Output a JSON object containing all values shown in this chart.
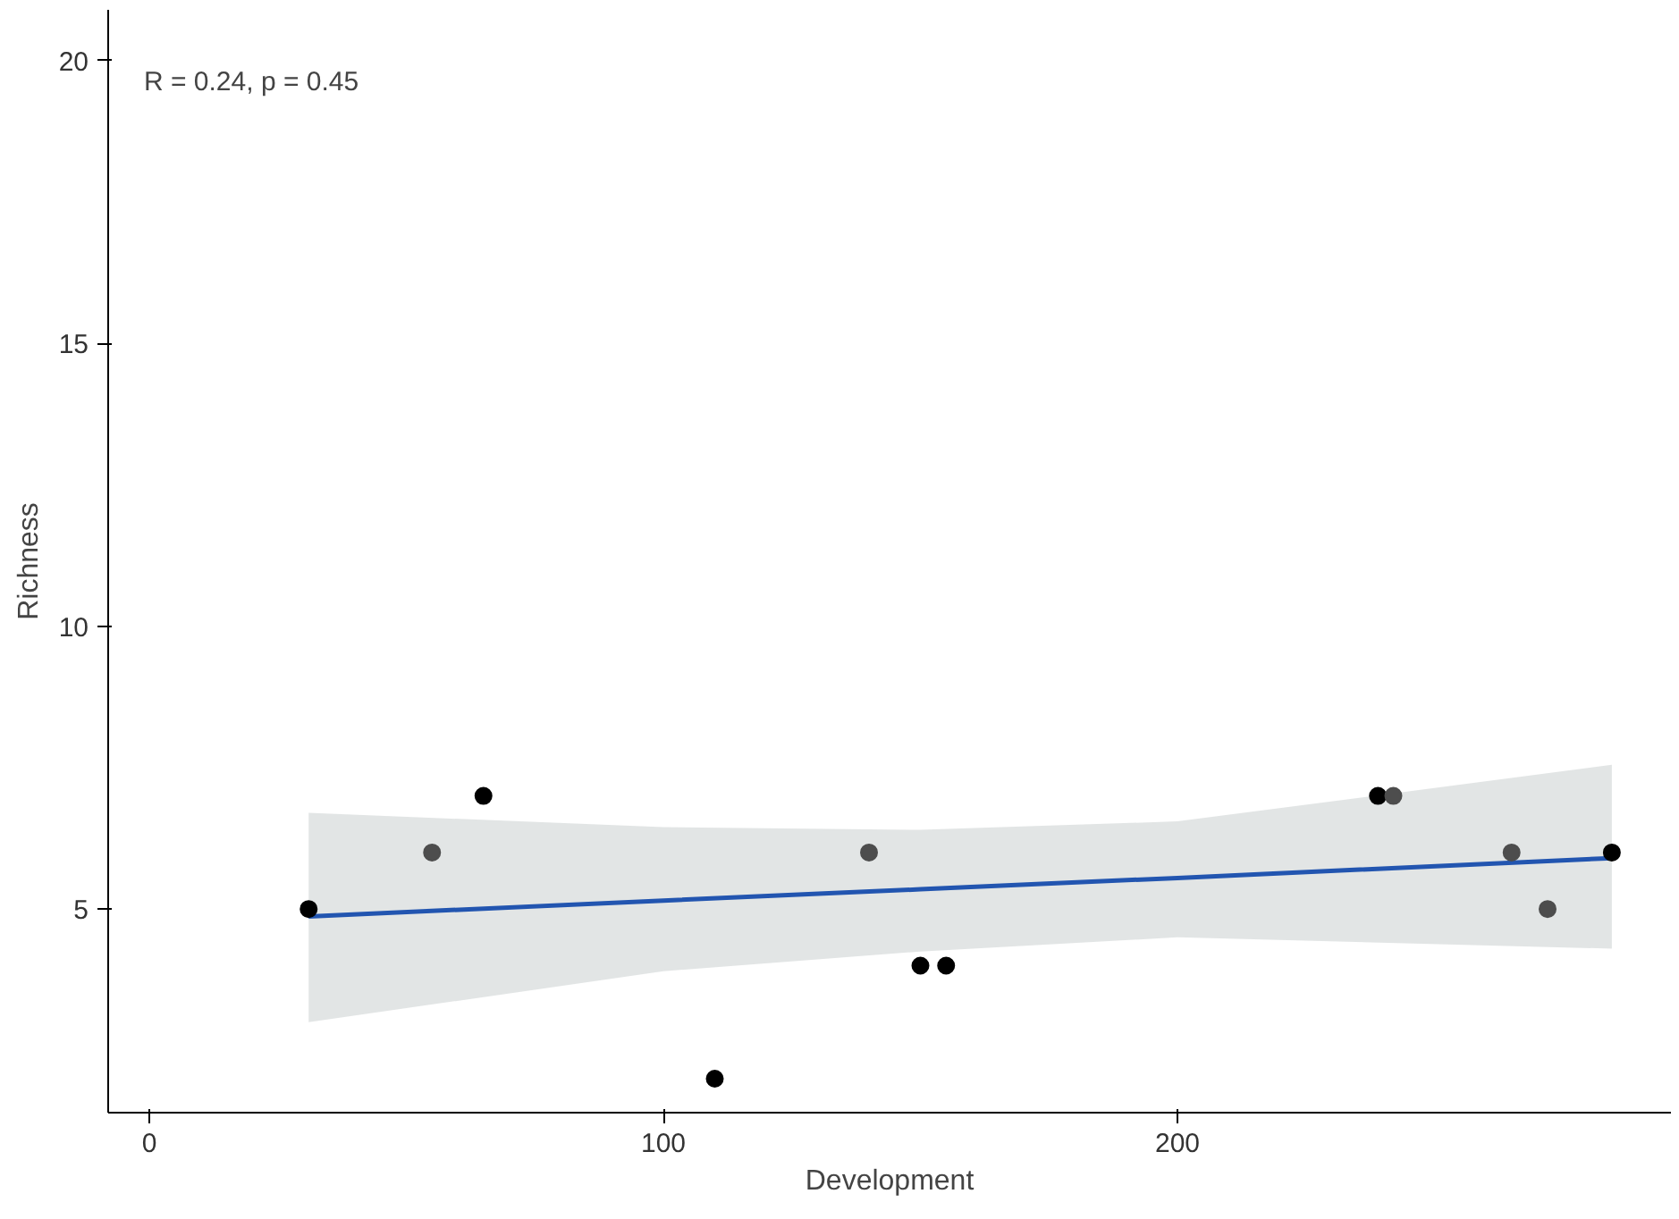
{
  "chart_data": {
    "type": "scatter",
    "xlabel": "Development",
    "ylabel": "Richness",
    "annotations": [
      "R = 0.24, p = 0.45"
    ],
    "xlim": [
      -8,
      296
    ],
    "xticks": [
      0,
      100,
      200
    ],
    "ylim": [
      1.4,
      20.9
    ],
    "yticks": [
      5,
      10,
      15,
      20
    ],
    "grid": false,
    "series": [
      {
        "marker": "circle",
        "x": [
          31,
          55,
          65,
          110,
          140,
          150,
          155,
          239,
          242,
          265,
          272,
          284.5
        ],
        "values": [
          5,
          6,
          7,
          2,
          6,
          4,
          4,
          7,
          7,
          6,
          5,
          6
        ],
        "colors": [
          "#000000",
          "#4d4d4d",
          "#000000",
          "#000000",
          "#4d4d4d",
          "#000000",
          "#000000",
          "#000000",
          "#4d4d4d",
          "#4d4d4d",
          "#4d4d4d",
          "#000000"
        ]
      },
      {
        "type": "line",
        "color": "#2255b0",
        "x": [
          31,
          100,
          150,
          200,
          284.5
        ],
        "values": [
          4.87,
          5.15,
          5.35,
          5.55,
          5.9
        ],
        "lower": [
          3.0,
          3.9,
          4.25,
          4.5,
          4.3
        ],
        "upper": [
          6.7,
          6.45,
          6.4,
          6.55,
          7.55
        ]
      }
    ]
  }
}
